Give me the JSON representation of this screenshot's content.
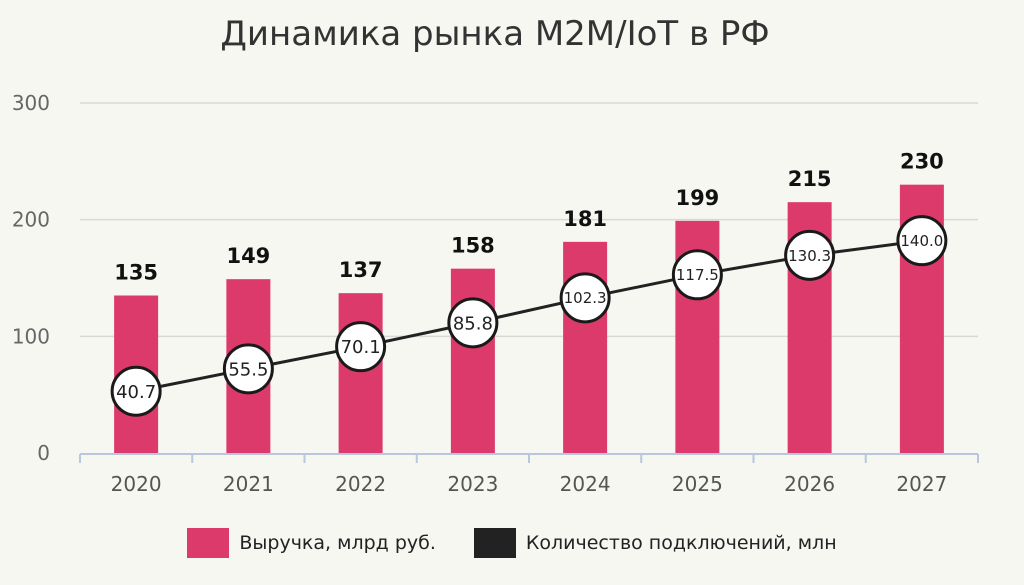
{
  "chart_data": {
    "type": "bar+line",
    "title": "Динамика рынка M2M/IoT в РФ",
    "categories": [
      "2020",
      "2021",
      "2022",
      "2023",
      "2024",
      "2025",
      "2026",
      "2027"
    ],
    "series": [
      {
        "name": "Выручка, млрд руб.",
        "type": "bar",
        "values": [
          135,
          149,
          137,
          158,
          181,
          199,
          215,
          230
        ],
        "labels": [
          "135",
          "149",
          "137",
          "158",
          "181",
          "199",
          "215",
          "230"
        ],
        "color": "#dc3a6b"
      },
      {
        "name": "Количество подключений, млн",
        "type": "line",
        "values": [
          40.7,
          55.5,
          70.1,
          85.8,
          102.3,
          117.5,
          130.3,
          140.0
        ],
        "labels": [
          "40.7",
          "55.5",
          "70.1",
          "85.8",
          "102.3",
          "117.5",
          "130.3",
          "140.0"
        ],
        "color": "#222222"
      }
    ],
    "yticks": [
      "0",
      "100",
      "200",
      "300"
    ],
    "ylim": [
      0,
      300
    ],
    "grid": true,
    "legend_position": "bottom"
  }
}
